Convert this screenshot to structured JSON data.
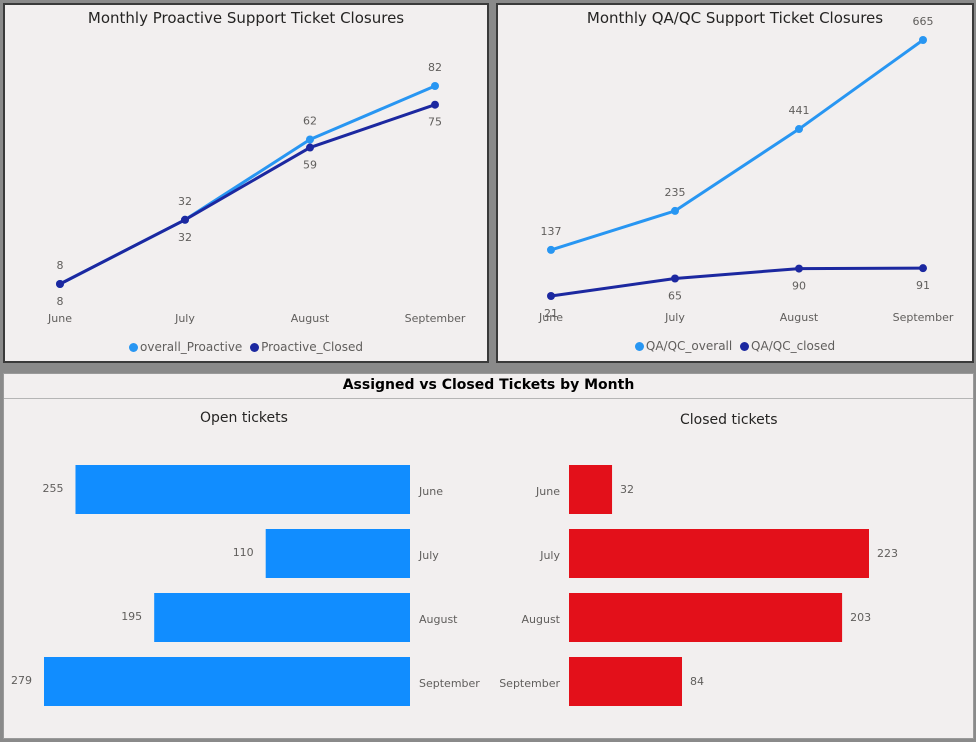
{
  "colors": {
    "light_blue": "#2896f2",
    "dark_blue": "#1c28a0",
    "bar_blue": "#118dff",
    "bar_red": "#e3101a"
  },
  "chart_data": [
    {
      "type": "line",
      "title": "Monthly Proactive Support Ticket Closures",
      "categories": [
        "June",
        "July",
        "August",
        "September"
      ],
      "series": [
        {
          "name": "overall_Proactive",
          "values": [
            8,
            32,
            62,
            82
          ],
          "color": "#2896f2"
        },
        {
          "name": "Proactive_Closed",
          "values": [
            8,
            32,
            59,
            75
          ],
          "color": "#1c28a0"
        }
      ],
      "ylim": [
        8,
        82
      ],
      "legend": "bottom-center"
    },
    {
      "type": "line",
      "title": "Monthly QA/QC Support Ticket Closures",
      "categories": [
        "June",
        "July",
        "August",
        "September"
      ],
      "series": [
        {
          "name": "QA/QC_overall",
          "values": [
            137,
            235,
            441,
            665
          ],
          "color": "#2896f2",
          "labels": [
            "137",
            "235",
            "441",
            "665"
          ]
        },
        {
          "name": "QA/QC_closed",
          "values": [
            21,
            65,
            90,
            91
          ],
          "color": "#1c28a0",
          "labels": [
            "21",
            "65",
            "90",
            "91"
          ]
        }
      ],
      "ylim": [
        21,
        665
      ],
      "legend": "bottom-center"
    },
    {
      "type": "bar",
      "title": "Assigned vs Closed Tickets by Month",
      "panels": [
        {
          "subtitle": "Open tickets",
          "categories": [
            "June",
            "July",
            "August",
            "September"
          ],
          "values": [
            255,
            110,
            195,
            279
          ],
          "color": "#118dff"
        },
        {
          "subtitle": "Closed tickets",
          "categories": [
            "June",
            "July",
            "August",
            "September"
          ],
          "values": [
            32,
            223,
            203,
            84
          ],
          "color": "#e3101a"
        }
      ]
    }
  ]
}
